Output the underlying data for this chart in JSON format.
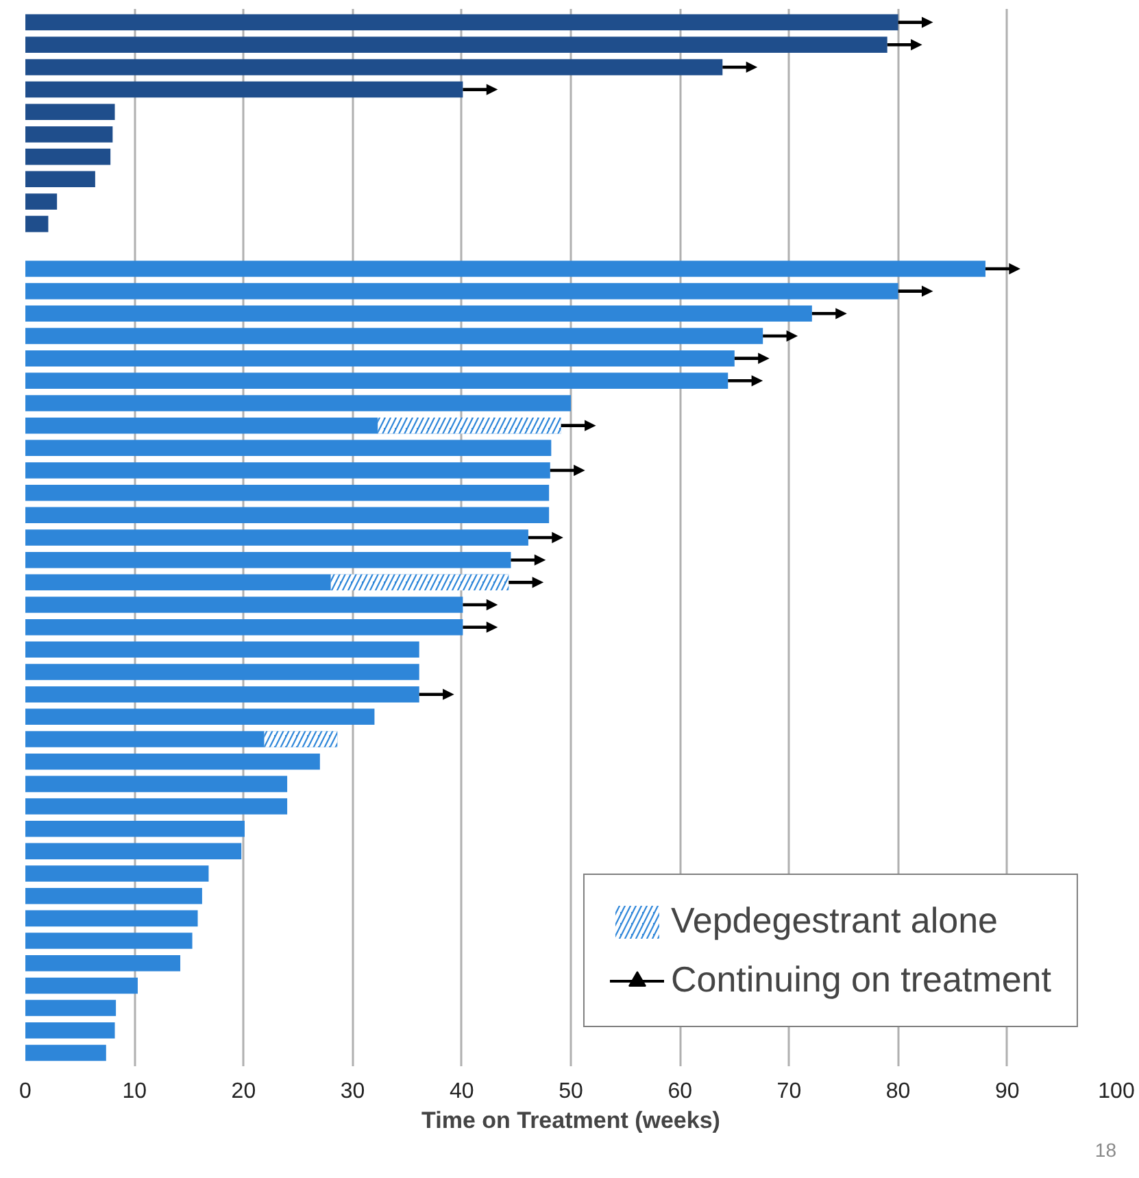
{
  "chart_data": {
    "type": "bar",
    "orientation": "horizontal",
    "stacked": true,
    "xlabel": "Time on Treatment (weeks)",
    "categories": [
      null,
      null,
      null,
      null,
      null,
      null,
      null,
      null,
      null,
      null,
      null,
      null,
      null,
      null,
      null,
      null,
      null,
      null,
      null,
      null,
      null,
      null,
      null,
      null,
      null,
      null,
      null,
      null,
      null,
      null,
      null,
      null,
      null,
      null,
      null,
      null,
      null,
      null,
      null,
      null,
      null,
      null,
      null,
      null,
      null,
      null,
      null
    ],
    "series": [
      {
        "colors": [
          "#1f4e8c",
          "#1f4e8c",
          "#1f4e8c",
          "#1f4e8c",
          "#1f4e8c",
          "#1f4e8c",
          "#1f4e8c",
          "#1f4e8c",
          "#1f4e8c",
          "#1f4e8c",
          "#1f4e8c",
          "#2e86d9",
          "#2e86d9",
          "#2e86d9",
          "#2e86d9",
          "#2e86d9",
          "#2e86d9",
          "#2e86d9",
          "#2e86d9",
          "#2e86d9",
          "#2e86d9",
          "#2e86d9",
          "#2e86d9",
          "#2e86d9",
          "#2e86d9",
          "#2e86d9",
          "#2e86d9",
          "#2e86d9",
          "#2e86d9",
          "#2e86d9",
          "#2e86d9",
          "#2e86d9",
          "#2e86d9",
          "#2e86d9",
          "#2e86d9",
          "#2e86d9",
          "#2e86d9",
          "#2e86d9",
          "#2e86d9",
          "#2e86d9",
          "#2e86d9",
          "#2e86d9",
          "#2e86d9",
          "#2e86d9",
          "#2e86d9",
          "#2e86d9",
          "#2e86d9"
        ],
        "values": [
          80.0,
          79.0,
          63.9,
          40.1,
          8.2,
          8.0,
          7.8,
          6.4,
          2.9,
          2.1,
          null,
          88.0,
          80.0,
          72.1,
          67.6,
          65.0,
          64.4,
          50.0,
          32.3,
          48.2,
          48.1,
          48.0,
          48.0,
          46.1,
          44.5,
          28.0,
          40.1,
          40.1,
          36.1,
          36.1,
          36.1,
          32.0,
          21.9,
          27.0,
          24.0,
          24.0,
          20.1,
          19.8,
          16.8,
          16.2,
          15.8,
          15.3,
          14.2,
          10.3,
          8.3,
          8.2,
          7.4
        ]
      },
      {
        "name": "Vepdegestrant alone",
        "color": "#2e86d9",
        "values": [
          null,
          null,
          null,
          null,
          null,
          null,
          null,
          null,
          null,
          null,
          null,
          null,
          null,
          null,
          null,
          null,
          null,
          null,
          16.8,
          null,
          null,
          null,
          null,
          null,
          null,
          16.3,
          null,
          null,
          null,
          null,
          null,
          null,
          6.7,
          null,
          null,
          null,
          null,
          null,
          null,
          null,
          null,
          null,
          null,
          null,
          null,
          null,
          null
        ]
      },
      {
        "type": "scatter",
        "name": "Continuing on treatment",
        "color": "#000000",
        "values": [
          81.6,
          80.6,
          65.5,
          41.7,
          null,
          null,
          null,
          null,
          null,
          null,
          null,
          89.6,
          81.6,
          73.7,
          69.2,
          66.6,
          66.0,
          null,
          50.7,
          null,
          49.7,
          null,
          null,
          47.7,
          46.1,
          45.9,
          41.7,
          41.7,
          null,
          null,
          37.7,
          null,
          null,
          null,
          null,
          null,
          null,
          null,
          null,
          null,
          null,
          null,
          null,
          null,
          null,
          null,
          null
        ]
      }
    ],
    "xlim": [
      0,
      100
    ],
    "xticks": [
      0,
      10,
      20,
      30,
      40,
      50,
      60,
      70,
      80,
      90,
      100
    ],
    "grid": "x",
    "legend": "bottom right",
    "tick_labels": "x",
    "annotations": [
      "18"
    ]
  }
}
